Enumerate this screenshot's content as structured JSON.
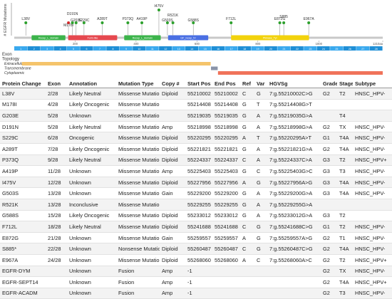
{
  "plot": {
    "y_label": "# EGFR Mutations",
    "xlim": [
      0,
      1210
    ],
    "xticks": [
      200,
      400,
      600,
      800,
      1000,
      {
        "value": 1210,
        "label": "1210aa"
      }
    ],
    "ylim": [
      0,
      2
    ],
    "domains": [
      {
        "name": "Recep_L_domain",
        "start": 57,
        "end": 168,
        "color": "#3cb44b"
      },
      {
        "name": "Furin-like",
        "start": 177,
        "end": 338,
        "color": "#e6484f"
      },
      {
        "name": "Recep_L_domain",
        "start": 361,
        "end": 481,
        "color": "#3cb44b"
      },
      {
        "name": "GF_recep_IV",
        "start": 505,
        "end": 637,
        "color": "#4a6fe3"
      },
      {
        "name": "Pkinase_Tyr",
        "start": 712,
        "end": 968,
        "color": "#f2d20c"
      }
    ],
    "lollipops": [
      {
        "label": "L38V",
        "position": 38,
        "count": 1,
        "color": "#2ca02c"
      },
      {
        "label": "M178I",
        "position": 178,
        "count": 1,
        "color": "#d62728"
      },
      {
        "label": "D191N",
        "position": 191,
        "count": 1,
        "color": "#2ca02c"
      },
      {
        "label": "G203E",
        "position": 203,
        "count": 1,
        "color": "#2ca02c"
      },
      {
        "label": "S229C",
        "position": 229,
        "count": 1,
        "color": "#2ca02c"
      },
      {
        "label": "A289T",
        "position": 289,
        "count": 1,
        "color": "#2ca02c"
      },
      {
        "label": "P373Q",
        "position": 373,
        "count": 1,
        "color": "#2ca02c"
      },
      {
        "label": "A419P",
        "position": 419,
        "count": 1,
        "color": "#2ca02c"
      },
      {
        "label": "I475V",
        "position": 475,
        "count": 2,
        "color": "#2ca02c"
      },
      {
        "label": "G503S",
        "position": 503,
        "count": 1,
        "color": "#2ca02c"
      },
      {
        "label": "R521K",
        "position": 521,
        "count": 1,
        "color": "#2ca02c"
      },
      {
        "label": "G588S",
        "position": 588,
        "count": 1,
        "color": "#2ca02c"
      },
      {
        "label": "F712L",
        "position": 712,
        "count": 1,
        "color": "#2ca02c"
      },
      {
        "label": "E872G",
        "position": 872,
        "count": 1,
        "color": "#2ca02c"
      },
      {
        "label": "S885",
        "position": 885,
        "count": 1,
        "color": "#2ca02c"
      },
      {
        "label": "E967A",
        "position": 967,
        "count": 1,
        "color": "#2ca02c"
      }
    ],
    "exon_label": "Exon",
    "exons": [
      1,
      2,
      3,
      4,
      5,
      6,
      7,
      8,
      9,
      10,
      11,
      12,
      13,
      14,
      15,
      16,
      17,
      18,
      19,
      20,
      21,
      22,
      23,
      24,
      25,
      26,
      27,
      28
    ],
    "topology_label": "Topology",
    "topology": [
      {
        "name": "Extracellular",
        "start": 25,
        "end": 645,
        "color": "#f5c46b"
      },
      {
        "name": "Transmembrane",
        "start": 646,
        "end": 668,
        "color": "#8a94a8"
      },
      {
        "name": "Cytoplasmic",
        "start": 669,
        "end": 1210,
        "color": "#f0735a"
      }
    ]
  },
  "table": {
    "columns": [
      "Protein Change",
      "Exon",
      "Annotation",
      "Mutation Type",
      "Copy #",
      "Start Pos",
      "End Pos",
      "Ref",
      "Var",
      "HGVSg",
      "Grade",
      "Stage",
      "Subtype"
    ],
    "rows": [
      [
        "L38V",
        "2/28",
        "Likely Neutral",
        "Missense Mutation",
        "Diploid",
        "55210002",
        "55210002",
        "C",
        "G",
        "7:g.55210002C>G",
        "G2",
        "T2",
        "HNSC_HPV-"
      ],
      [
        "M178I",
        "4/28",
        "Likely Oncogenic",
        "Missense Mutation",
        null,
        "55214408",
        "55214408",
        "G",
        "T",
        "7:g.55214408G>T",
        null,
        null,
        null
      ],
      [
        "G203E",
        "5/28",
        "Unknown",
        "Missense Mutation",
        null,
        "55219035",
        "55219035",
        "G",
        "A",
        "7:g.55219035G>A",
        null,
        "T4",
        null
      ],
      [
        "D191N",
        "5/28",
        "Likely Neutral",
        "Missense Mutation",
        "Amp",
        "55218998",
        "55218998",
        "G",
        "A",
        "7:g.55218998G>A",
        "G2",
        "TX",
        "HNSC_HPV-"
      ],
      [
        "S229C",
        "6/28",
        "Oncogenic",
        "Missense Mutation",
        "Diploid",
        "55220295",
        "55220295",
        "A",
        "T",
        "7:g.55220295A>T",
        "G1",
        "T4A",
        "HNSC_HPV-"
      ],
      [
        "A289T",
        "7/28",
        "Likely Oncogenic",
        "Missense Mutation",
        "Diploid",
        "55221821",
        "55221821",
        "G",
        "A",
        "7:g.55221821G>A",
        "G2",
        "T4A",
        "HNSC_HPV-"
      ],
      [
        "P373Q",
        "9/28",
        "Likely Neutral",
        "Missense Mutation",
        "Diploid",
        "55224337",
        "55224337",
        "C",
        "A",
        "7:g.55224337C>A",
        "G3",
        "T2",
        "HNSC_HPV+"
      ],
      [
        "A419P",
        "11/28",
        "Unknown",
        "Missense Mutation",
        "Amp",
        "55225403",
        "55225403",
        "G",
        "C",
        "7:g.55225403G>C",
        "G3",
        "T3",
        "HNSC_HPV-"
      ],
      [
        "I475V",
        "12/28",
        "Unknown",
        "Missense Mutation",
        "Diploid",
        "55227956",
        "55227956",
        "A",
        "G",
        "7:g.55227956A>G",
        "G3",
        "T4A",
        "HNSC_HPV-"
      ],
      [
        "G503S",
        "13/28",
        "Unknown",
        "Missense Mutation",
        "Gain",
        "55229200",
        "55229200",
        "G",
        "A",
        "7:g.55229200G>A",
        "G3",
        "T4A",
        "HNSC_HPV-"
      ],
      [
        "R521K",
        "13/28",
        "Inconclusive",
        "Missense Mutation",
        null,
        "55229255",
        "55229255",
        "G",
        "A",
        "7:g.55229255G>A",
        null,
        null,
        null
      ],
      [
        "G588S",
        "15/28",
        "Likely Oncogenic",
        "Missense Mutation",
        "Diploid",
        "55233012",
        "55233012",
        "G",
        "A",
        "7:g.55233012G>A",
        "G3",
        "T2",
        null
      ],
      [
        "F712L",
        "18/28",
        "Likely Neutral",
        "Missense Mutation",
        "Diploid",
        "55241688",
        "55241688",
        "C",
        "G",
        "7:g.55241688C>G",
        "G1",
        "T2",
        "HNSC_HPV-"
      ],
      [
        "E872G",
        "21/28",
        "Unknown",
        "Missense Mutation",
        "Gain",
        "55259557",
        "55259557",
        "A",
        "G",
        "7:g.55259557A>G",
        "G2",
        "T1",
        "HNSC_HPV-"
      ],
      [
        "S885*",
        "22/28",
        "Unknown",
        "Nonsense Mutation",
        "Diploid",
        "55260487",
        "55260487",
        "C",
        "G",
        "7:g.55260487C>G",
        "G2",
        "T4A",
        "HNSC_HPV-"
      ],
      [
        "E967A",
        "24/28",
        "Unknown",
        "Missense Mutation",
        "Diploid",
        "55268060",
        "55268060",
        "A",
        "C",
        "7:g.55268060A>C",
        "G2",
        "T2",
        "HNSC_HPV+"
      ],
      [
        "EGFR-DYM",
        null,
        "Unknown",
        "Fusion",
        "Amp",
        "-1",
        null,
        null,
        null,
        null,
        "G2",
        "TX",
        "HNSC_HPV-"
      ],
      [
        "EGFR-SEPT14",
        null,
        "Unknown",
        "Fusion",
        "Amp",
        "-1",
        null,
        null,
        null,
        null,
        "G2",
        "T4A",
        "HNSC_HPV+"
      ],
      [
        "EGFR-ACADM",
        null,
        "Unknown",
        "Fusion",
        "Amp",
        "-1",
        null,
        null,
        null,
        null,
        "G2",
        "T3",
        "HNSC_HPV-"
      ]
    ]
  }
}
